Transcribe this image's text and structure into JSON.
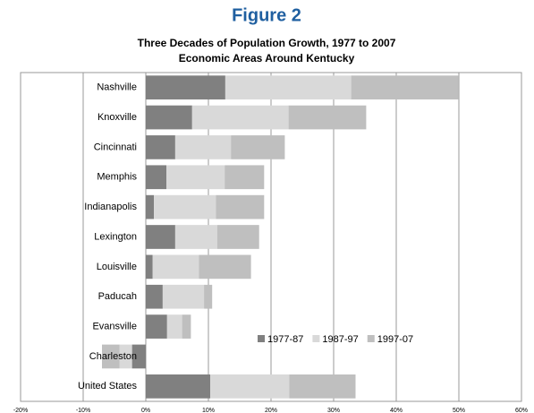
{
  "figure_label": "Figure 2",
  "chart_data": {
    "type": "stacked-barh",
    "title": "Three Decades of Population Growth, 1977 to 2007",
    "subtitle": "Economic Areas Around Kentucky",
    "categories": [
      "Nashville",
      "Knoxville",
      "Cincinnati",
      "Memphis",
      "Indianapolis",
      "Lexington",
      "Louisville",
      "Paducah",
      "Evansville",
      "Charleston",
      "United States"
    ],
    "series": [
      {
        "name": "1977-87",
        "color": "#808080",
        "values": [
          12.7,
          7.4,
          4.7,
          3.3,
          1.3,
          4.7,
          1.1,
          2.7,
          3.4,
          -2.2,
          10.3
        ]
      },
      {
        "name": "1987-97",
        "color": "#d9d9d9",
        "values": [
          20.1,
          15.4,
          8.9,
          9.3,
          9.9,
          6.7,
          7.4,
          6.6,
          2.4,
          -2.0,
          12.6
        ]
      },
      {
        "name": "1997-07",
        "color": "#bfbfbf",
        "values": [
          17.1,
          12.4,
          8.6,
          6.3,
          7.7,
          6.7,
          8.3,
          1.3,
          1.4,
          -2.8,
          10.6
        ]
      }
    ],
    "xlim": [
      -20,
      60
    ],
    "xticks": [
      {
        "value": -20,
        "label": "-20%"
      },
      {
        "value": -10,
        "label": "-10%"
      },
      {
        "value": 0,
        "label": "0%"
      },
      {
        "value": 10,
        "label": "10%"
      },
      {
        "value": 20,
        "label": "20%"
      },
      {
        "value": 30,
        "label": "30%"
      },
      {
        "value": 40,
        "label": "40%"
      },
      {
        "value": 50,
        "label": "50%"
      },
      {
        "value": 60,
        "label": "60%"
      }
    ],
    "grid": true,
    "legend": "lower right"
  }
}
